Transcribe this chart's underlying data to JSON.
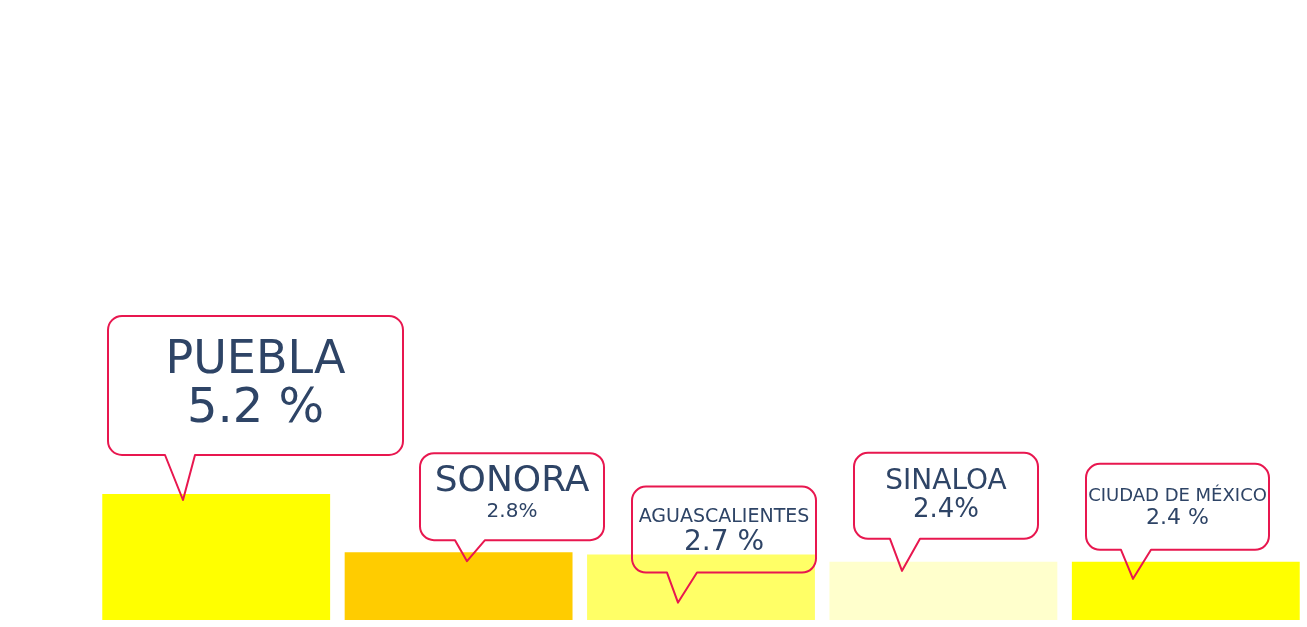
{
  "chart_data": {
    "type": "bar",
    "categories": [
      "PUEBLA",
      "SONORA",
      "AGUASCALIENTES",
      "SINALOA",
      "CIUDAD DE MÉXICO"
    ],
    "values": [
      5.2,
      2.8,
      2.7,
      2.4,
      2.4
    ],
    "colors": [
      "#ffff00",
      "#ffcc00",
      "#ffff66",
      "#ffffcc",
      "#ffff00"
    ],
    "value_labels": [
      "5.2 %",
      "2.8%",
      "2.7 %",
      "2.4%",
      "2.4 %"
    ],
    "tick_labels": false
  }
}
